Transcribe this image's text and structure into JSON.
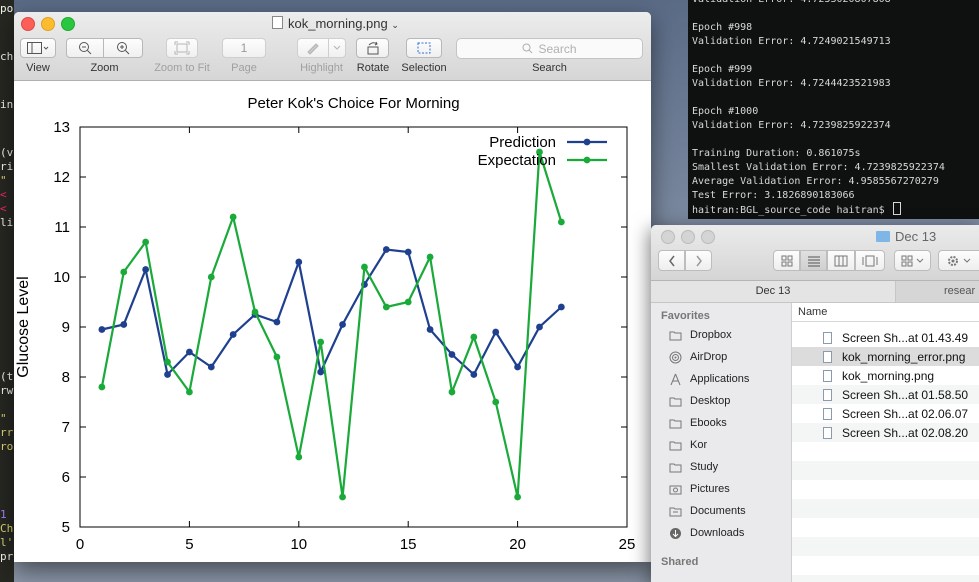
{
  "editor": {
    "lines": [
      {
        "text": "po",
        "color": "#f8f8f2"
      },
      {
        "text": "ch",
        "color": "#f8f8f2"
      },
      {
        "text": "in",
        "color": "#f8f8f2"
      },
      {
        "text": "(v",
        "color": "#f8f8f2"
      },
      {
        "text": "ri",
        "color": "#f8f8f2"
      },
      {
        "text": " \"",
        "color": "#e6db74"
      },
      {
        "text": "< ",
        "color": "#f92672"
      },
      {
        "text": "< ",
        "color": "#f92672"
      },
      {
        "text": "li",
        "color": "#f8f8f2"
      },
      {
        "text": "(t",
        "color": "#f8f8f2"
      },
      {
        "text": "rw",
        "color": "#f8f8f2"
      },
      {
        "text": "\" ",
        "color": "#e6db74"
      },
      {
        "text": "rr",
        "color": "#e6db74"
      },
      {
        "text": "ro",
        "color": "#e6db74"
      },
      {
        "text": " 1",
        "color": "#ae81ff"
      },
      {
        "text": "Ch",
        "color": "#e6db74"
      },
      {
        "text": "l'",
        "color": "#e6db74"
      },
      {
        "text": "pr",
        "color": "#f8f8f2"
      }
    ]
  },
  "terminal": {
    "lines": [
      "Validation Error: 4.7253020807808",
      "",
      "Epoch #998",
      "Validation Error: 4.7249021549713",
      "",
      "Epoch #999",
      "Validation Error: 4.7244423521983",
      "",
      "Epoch #1000",
      "Validation Error: 4.7239825922374",
      "",
      "Training Duration: 0.861075s",
      "Smallest Validation Error: 4.7239825922374",
      "Average Validation Error: 4.9585567270279",
      "Test Error: 3.1826890183066"
    ],
    "prompt": "haitran:BGL_source_code haitran$"
  },
  "preview": {
    "title": "kok_morning.png",
    "toolbar": {
      "view": "View",
      "zoom": "Zoom",
      "zoom_to_fit": "Zoom to Fit",
      "page_value": "1",
      "page": "Page",
      "highlight": "Highlight",
      "rotate": "Rotate",
      "selection": "Selection",
      "search_placeholder": "Search",
      "search": "Search"
    }
  },
  "chart_data": {
    "type": "line",
    "title": "Peter Kok's Choice For Morning",
    "xlabel": "",
    "ylabel": "Glucose Level",
    "xlim": [
      0,
      25
    ],
    "ylim": [
      5,
      13
    ],
    "xticks": [
      "0",
      "5",
      "10",
      "15",
      "20",
      "25"
    ],
    "yticks": [
      "5",
      "6",
      "7",
      "8",
      "9",
      "10",
      "11",
      "12",
      "13"
    ],
    "grid": false,
    "legend": "top-right",
    "x": [
      1,
      2,
      3,
      4,
      5,
      6,
      7,
      8,
      9,
      10,
      11,
      12,
      13,
      14,
      15,
      16,
      17,
      18,
      19,
      20,
      21,
      22
    ],
    "series": [
      {
        "name": "Prediction",
        "color": "#1f3f8f",
        "values": [
          8.95,
          9.05,
          10.15,
          8.05,
          8.5,
          8.2,
          8.85,
          9.25,
          9.1,
          10.3,
          8.1,
          9.05,
          9.85,
          10.55,
          10.5,
          8.95,
          8.45,
          8.05,
          8.9,
          8.2,
          9.0,
          9.4
        ]
      },
      {
        "name": "Expectation",
        "color": "#1aaa3a",
        "values": [
          7.8,
          10.1,
          10.7,
          8.3,
          7.7,
          10.0,
          11.2,
          9.3,
          8.4,
          6.4,
          8.7,
          5.6,
          10.2,
          9.4,
          9.5,
          10.4,
          7.7,
          8.8,
          7.5,
          5.6,
          12.5,
          11.1
        ]
      }
    ]
  },
  "finder": {
    "title": "Dec 13",
    "tabs": [
      "Dec 13",
      "resear"
    ],
    "sidebar": {
      "favorites_label": "Favorites",
      "items": [
        "Dropbox",
        "AirDrop",
        "Applications",
        "Desktop",
        "Ebooks",
        "Kor",
        "Study",
        "Pictures",
        "Documents",
        "Downloads"
      ],
      "shared_label": "Shared"
    },
    "column_name": "Name",
    "files": [
      "Screen Sh...at 01.43.49",
      "kok_morning_error.png",
      "kok_morning.png",
      "Screen Sh...at 01.58.50",
      "Screen Sh...at 02.06.07",
      "Screen Sh...at 02.08.20"
    ]
  }
}
